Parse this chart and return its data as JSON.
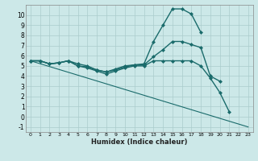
{
  "xlabel": "Humidex (Indice chaleur)",
  "ylabel": "",
  "xlim": [
    -0.5,
    23.5
  ],
  "ylim": [
    -1.5,
    11.0
  ],
  "yticks": [
    -1,
    0,
    1,
    2,
    3,
    4,
    5,
    6,
    7,
    8,
    9,
    10
  ],
  "xticks": [
    0,
    1,
    2,
    3,
    4,
    5,
    6,
    7,
    8,
    9,
    10,
    11,
    12,
    13,
    14,
    15,
    16,
    17,
    18,
    19,
    20,
    21,
    22,
    23
  ],
  "background_color": "#cce8e8",
  "grid_color": "#aacccc",
  "line_color": "#1a6b6b",
  "series": [
    {
      "x": [
        0,
        1,
        2,
        3,
        4,
        5,
        6,
        7,
        8,
        9,
        10,
        11,
        12,
        13,
        14,
        15,
        16,
        17,
        18
      ],
      "y": [
        5.5,
        5.5,
        5.2,
        5.3,
        5.5,
        5.2,
        5.0,
        4.6,
        4.4,
        4.7,
        5.0,
        5.1,
        5.2,
        7.4,
        9.0,
        10.6,
        10.6,
        10.1,
        8.3
      ],
      "marker": "D",
      "markersize": 2.0,
      "linewidth": 1.0
    },
    {
      "x": [
        0,
        1,
        2,
        3,
        4,
        5,
        6,
        7,
        8,
        9,
        10,
        11,
        12,
        13,
        14,
        15,
        16,
        17,
        18,
        19,
        20
      ],
      "y": [
        5.5,
        5.5,
        5.2,
        5.3,
        5.5,
        5.0,
        4.9,
        4.6,
        4.4,
        4.6,
        4.9,
        5.1,
        5.1,
        5.9,
        6.6,
        7.4,
        7.4,
        7.1,
        6.8,
        4.0,
        3.5
      ],
      "marker": "D",
      "markersize": 2.0,
      "linewidth": 1.0
    },
    {
      "x": [
        0,
        1,
        2,
        3,
        4,
        5,
        6,
        7,
        8,
        9,
        10,
        11,
        12,
        13,
        14,
        15,
        16,
        17,
        18,
        19,
        20,
        21
      ],
      "y": [
        5.5,
        5.5,
        5.2,
        5.3,
        5.5,
        5.0,
        4.8,
        4.5,
        4.2,
        4.5,
        4.8,
        5.0,
        5.0,
        5.5,
        5.5,
        5.5,
        5.5,
        5.5,
        5.0,
        3.8,
        2.4,
        0.5
      ],
      "marker": "D",
      "markersize": 2.0,
      "linewidth": 1.0
    },
    {
      "x": [
        0,
        23
      ],
      "y": [
        5.5,
        -1.0
      ],
      "marker": null,
      "markersize": 0,
      "linewidth": 0.8
    }
  ]
}
